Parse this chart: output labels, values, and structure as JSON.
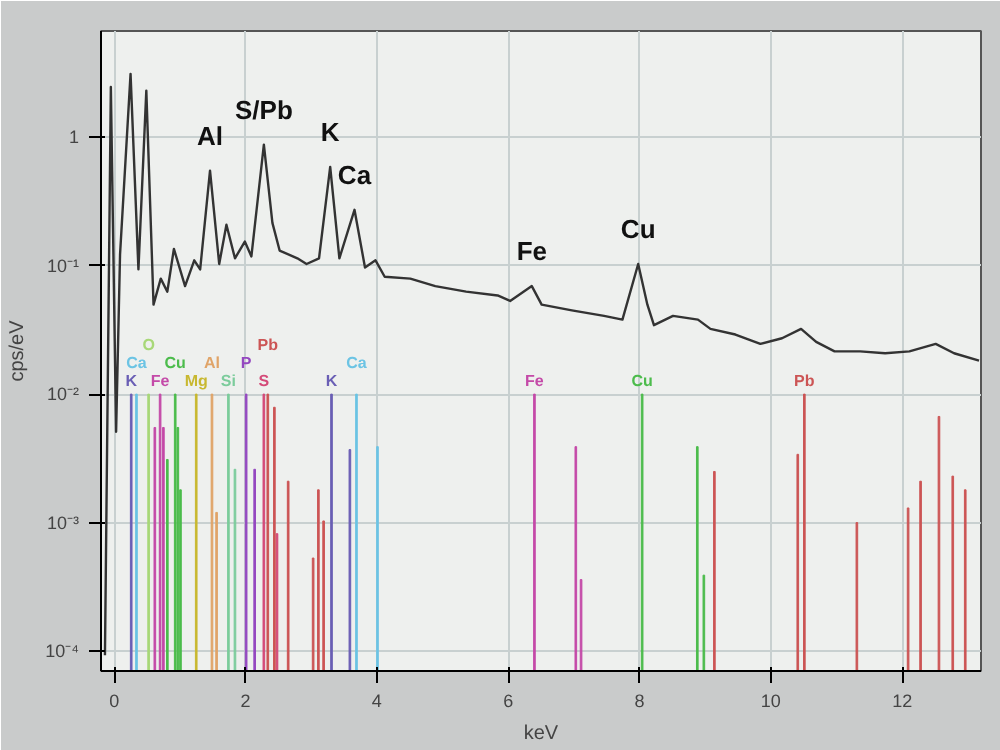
{
  "chart_data": {
    "type": "line",
    "xlabel": "keV",
    "ylabel": "cps/eV",
    "xlim": [
      -0.2,
      13.2
    ],
    "ylim": [
      7e-05,
      6.7
    ],
    "log": "y",
    "grid": true,
    "xticks": [
      0,
      2,
      4,
      6,
      8,
      10,
      12
    ],
    "yticks": [
      {
        "value": 0.0001,
        "label": "10⁻⁴"
      },
      {
        "value": 0.001,
        "label": "10⁻³"
      },
      {
        "value": 0.01,
        "label": "10⁻²"
      },
      {
        "value": 0.1,
        "label": "10⁻¹"
      },
      1
    ],
    "annotations": [
      {
        "text": "Al",
        "x": 1.46,
        "y": 0.548
      },
      {
        "text": "S/Pb",
        "x": 2.28,
        "y": 0.875
      },
      {
        "text": "K",
        "x": 3.29,
        "y": 0.586
      },
      {
        "text": "Ca",
        "x": 3.66,
        "y": 0.272
      },
      {
        "text": "Fe",
        "x": 6.36,
        "y": 0.0693
      },
      {
        "text": "Cu",
        "x": 7.98,
        "y": 0.103
      }
    ],
    "series": [
      {
        "color": "#333333",
        "x": [
          -0.14,
          -0.05,
          0.03,
          0.09,
          0.25,
          0.37,
          0.49,
          0.6,
          0.71,
          0.81,
          0.91,
          1.08,
          1.22,
          1.31,
          1.46,
          1.6,
          1.71,
          1.84,
          1.99,
          2.09,
          2.28,
          2.41,
          2.52,
          2.79,
          2.93,
          3.12,
          3.29,
          3.43,
          3.66,
          3.82,
          3.98,
          4.12,
          4.51,
          4.89,
          5.36,
          5.84,
          6.03,
          6.36,
          6.51,
          6.97,
          7.46,
          7.74,
          7.98,
          8.12,
          8.22,
          8.51,
          8.89,
          9.08,
          9.46,
          9.84,
          10.17,
          10.46,
          10.69,
          10.97,
          11.36,
          11.74,
          12.11,
          12.51,
          12.79,
          13.17
        ],
        "values": [
          9.3e-05,
          2.46,
          0.0051,
          0.122,
          3.11,
          0.0935,
          2.3,
          0.0497,
          0.0792,
          0.0627,
          0.135,
          0.0693,
          0.11,
          0.0935,
          0.548,
          0.103,
          0.208,
          0.114,
          0.154,
          0.118,
          0.875,
          0.215,
          0.131,
          0.114,
          0.103,
          0.114,
          0.586,
          0.114,
          0.272,
          0.0967,
          0.11,
          0.0819,
          0.0792,
          0.0693,
          0.0627,
          0.0586,
          0.0531,
          0.0693,
          0.0497,
          0.0449,
          0.0406,
          0.038,
          0.103,
          0.0497,
          0.0344,
          0.0406,
          0.038,
          0.0322,
          0.0291,
          0.0246,
          0.0272,
          0.0322,
          0.0255,
          0.0215,
          0.0215,
          0.0208,
          0.0215,
          0.0246,
          0.0208,
          0.0182
        ]
      },
      {
        "type": "bar",
        "name": "K",
        "color": "#6a5fb5",
        "x": [
          0.26,
          3.31,
          3.59
        ],
        "values": [
          0.01,
          0.01,
          0.0037
        ]
      },
      {
        "type": "bar",
        "name": "Ca",
        "color": "#6cc4e4",
        "x": [
          0.34,
          3.69,
          4.01
        ],
        "values": [
          0.01,
          0.01,
          0.0039
        ]
      },
      {
        "type": "bar",
        "name": "O",
        "color": "#a8d878",
        "x": [
          0.525
        ],
        "values": [
          0.01
        ]
      },
      {
        "type": "bar",
        "name": "Fe",
        "color": "#c44aa8",
        "x": [
          0.62,
          0.7,
          0.75,
          6.4,
          7.03,
          7.11
        ],
        "values": [
          0.0055,
          0.01,
          0.0055,
          0.01,
          0.0039,
          0.00036
        ]
      },
      {
        "type": "bar",
        "name": "Cu",
        "color": "#4cbc4c",
        "x": [
          0.81,
          0.93,
          0.97,
          1.01,
          8.04,
          8.88,
          8.98
        ],
        "values": [
          0.0031,
          0.01,
          0.0055,
          0.0018,
          0.01,
          0.0039,
          0.00039
        ]
      },
      {
        "type": "bar",
        "name": "Mg",
        "color": "#c8b830",
        "x": [
          1.25
        ],
        "values": [
          0.01
        ]
      },
      {
        "type": "bar",
        "name": "Al",
        "color": "#e0a468",
        "x": [
          1.49,
          1.56
        ],
        "values": [
          0.01,
          0.0012
        ]
      },
      {
        "type": "bar",
        "name": "Si",
        "color": "#7ccc9c",
        "x": [
          1.74,
          1.84
        ],
        "values": [
          0.01,
          0.0026
        ]
      },
      {
        "type": "bar",
        "name": "P",
        "color": "#9448c0",
        "x": [
          2.01,
          2.14
        ],
        "values": [
          0.01,
          0.0026
        ]
      },
      {
        "type": "bar",
        "name": "S",
        "color": "#d44a78",
        "x": [
          2.28,
          2.48
        ],
        "values": [
          0.01,
          0.00082
        ]
      },
      {
        "type": "bar",
        "name": "Pb",
        "color": "#cc5555",
        "x": [
          2.34,
          2.44,
          2.65,
          3.03,
          3.11,
          3.19,
          9.14,
          10.41,
          10.51,
          11.31,
          12.09,
          12.28,
          12.56,
          12.77,
          12.96
        ],
        "values": [
          0.01,
          0.0079,
          0.0021,
          0.00053,
          0.0018,
          0.00103,
          0.0025,
          0.0034,
          0.01,
          0.001,
          0.0013,
          0.0021,
          0.0067,
          0.0023,
          0.0018
        ]
      }
    ]
  }
}
